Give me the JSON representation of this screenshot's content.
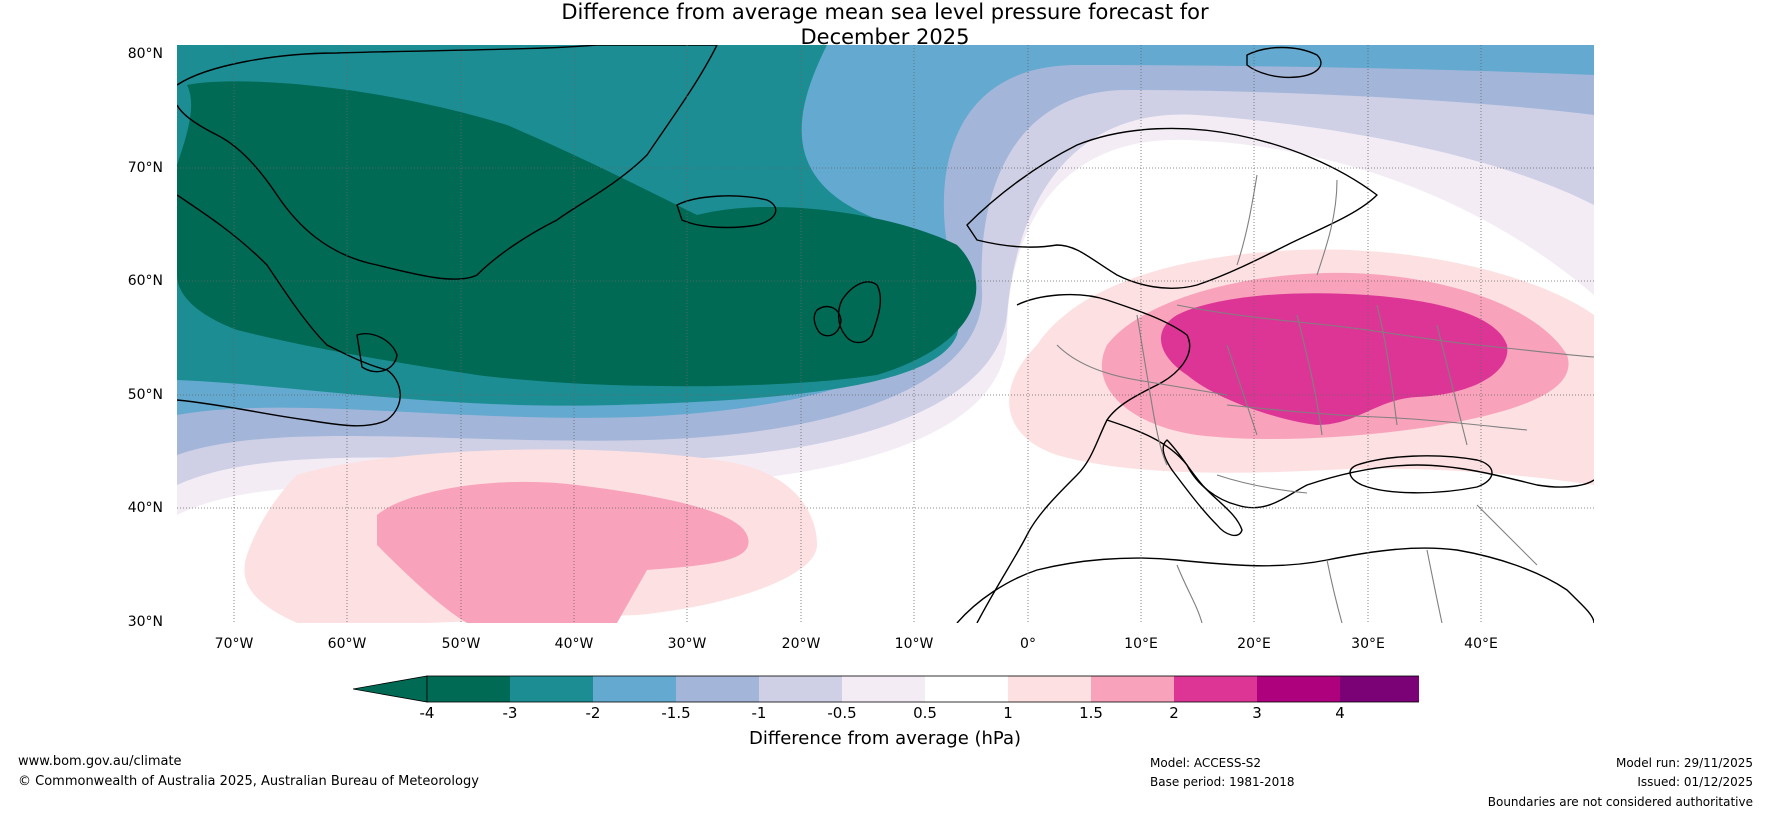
{
  "title_line1": "Difference from average mean sea level pressure forecast for",
  "title_line2": "December 2025",
  "lat_labels": [
    "80°N",
    "70°N",
    "60°N",
    "50°N",
    "40°N",
    "30°N"
  ],
  "lon_labels": [
    "70°W",
    "60°W",
    "50°W",
    "40°W",
    "30°W",
    "20°W",
    "10°W",
    "0°",
    "10°E",
    "20°E",
    "30°E",
    "40°E"
  ],
  "colorbar": {
    "ticks": [
      "-4",
      "-3",
      "-2",
      "-1.5",
      "-1",
      "-0.5",
      "0.5",
      "1",
      "1.5",
      "2",
      "3",
      "4"
    ],
    "colors": [
      "#006a55",
      "#1c8e93",
      "#64a9cf",
      "#a3b6d9",
      "#cfd0e5",
      "#f3ecf5",
      "#ffffff",
      "#fde0e1",
      "#f8a2bb",
      "#dd3596",
      "#ad017e",
      "#7b0177"
    ],
    "under_color": "#006a55",
    "over_color": "#4a006a",
    "label": "Difference from average (hPa)"
  },
  "footer": {
    "website": "www.bom.gov.au/climate",
    "copyright": "© Commonwealth of Australia 2025, Australian Bureau of Meteorology",
    "model": "Model: ACCESS-S2",
    "base_period": "Base period: 1981-2018",
    "model_run": "Model run: 29/11/2025",
    "issued": "Issued: 01/12/2025",
    "disclaimer": "Boundaries are not considered authoritative"
  }
}
